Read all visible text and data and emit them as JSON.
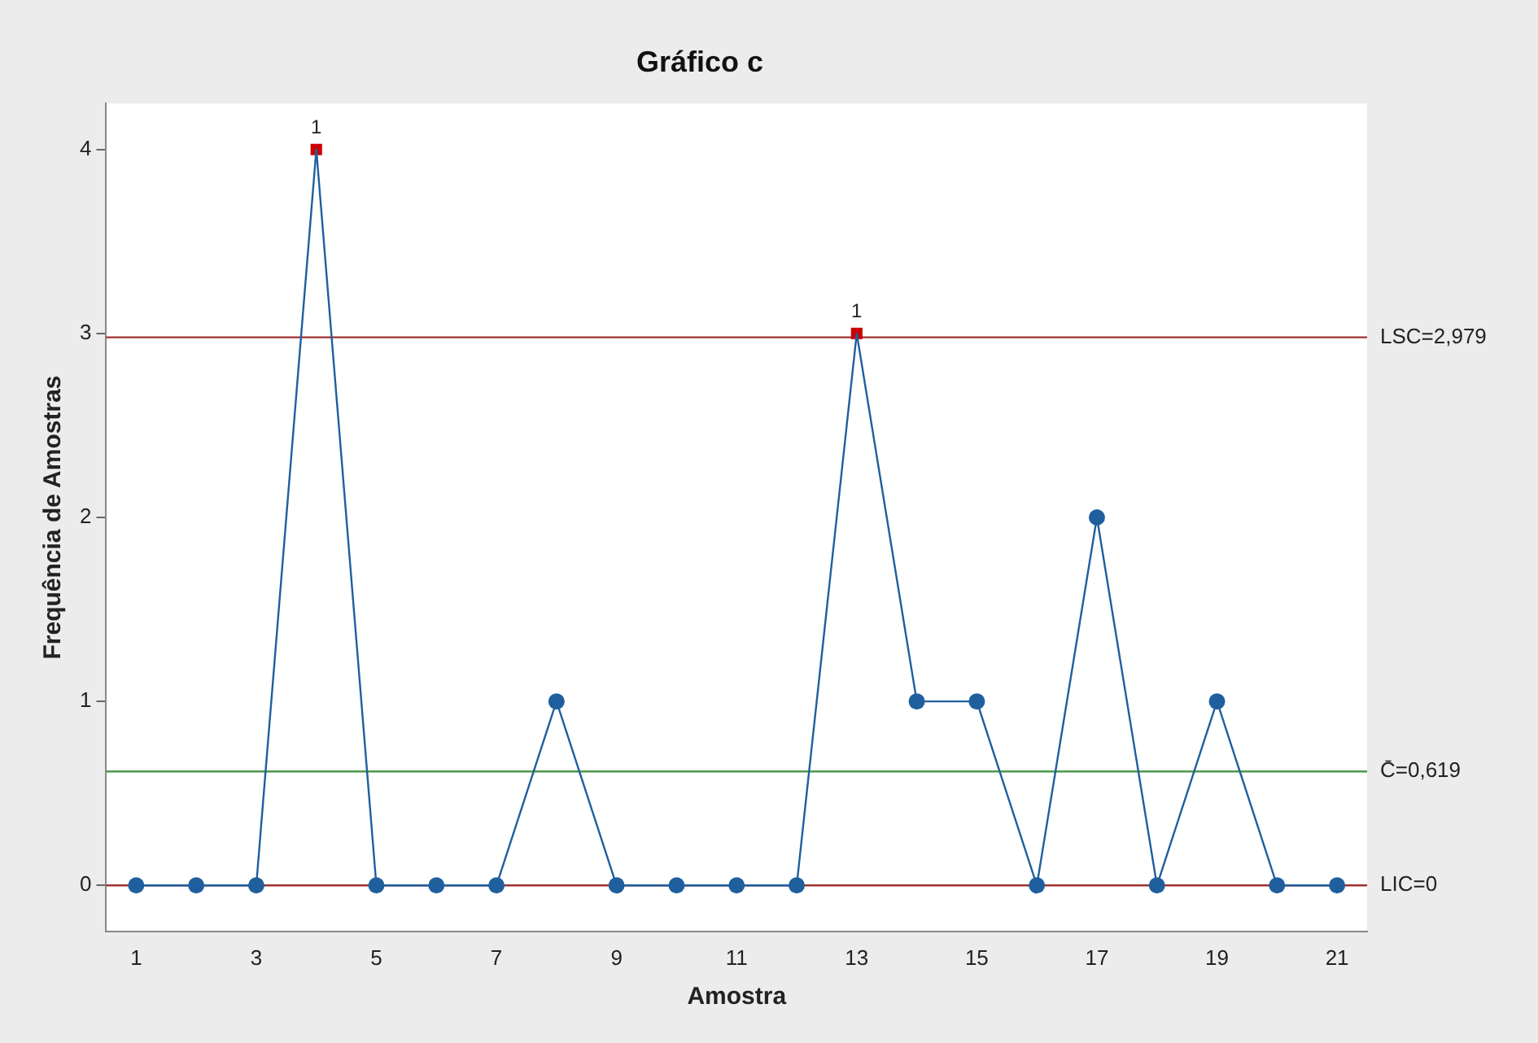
{
  "chart_data": {
    "type": "line",
    "title": "Gráfico c",
    "xlabel": "Amostra",
    "ylabel": "Frequência de Amostras",
    "x": [
      1,
      2,
      3,
      4,
      5,
      6,
      7,
      8,
      9,
      10,
      11,
      12,
      13,
      14,
      15,
      16,
      17,
      18,
      19,
      20,
      21
    ],
    "series": [
      {
        "color": "#1f5f9e",
        "marker": "none",
        "values": [
          0,
          0,
          0,
          4,
          0,
          0,
          0,
          1,
          0,
          0,
          0,
          0,
          3,
          1,
          1,
          0,
          2,
          0,
          1,
          0,
          0
        ]
      },
      {
        "type": "scatter",
        "color": "#1f5f9e",
        "marker": "circle",
        "x": [
          1,
          2,
          3,
          5,
          6,
          7,
          8,
          9,
          10,
          11,
          12,
          14,
          15,
          16,
          17,
          18,
          19,
          20,
          21
        ],
        "values": [
          0,
          0,
          0,
          0,
          0,
          0,
          1,
          0,
          0,
          0,
          0,
          1,
          1,
          0,
          2,
          0,
          1,
          0,
          0
        ]
      },
      {
        "type": "scatter",
        "color": "#cc0000",
        "marker": "square",
        "x": [
          4,
          13
        ],
        "values": [
          4,
          3
        ]
      }
    ],
    "xlim": [
      0.5,
      21.5
    ],
    "xticks": [
      1,
      3,
      5,
      7,
      9,
      11,
      13,
      15,
      17,
      19,
      21
    ],
    "ylim": [
      -0.25,
      4.25
    ],
    "yticks": [
      0,
      1,
      2,
      3,
      4
    ],
    "ref_lines": [
      {
        "axis": "y",
        "value": 2.979,
        "label": "LSC=2,979",
        "color": "#a03030"
      },
      {
        "axis": "y",
        "value": 0.619,
        "label": "C̄=0,619",
        "color": "#4a9a4a"
      },
      {
        "axis": "y",
        "value": 0,
        "label": "LIC=0",
        "color": "#a03030"
      }
    ],
    "annotations": [
      {
        "text": "1",
        "x": 4,
        "y": 4
      },
      {
        "text": "1",
        "x": 13,
        "y": 3
      }
    ],
    "grid": false,
    "legend": false
  }
}
